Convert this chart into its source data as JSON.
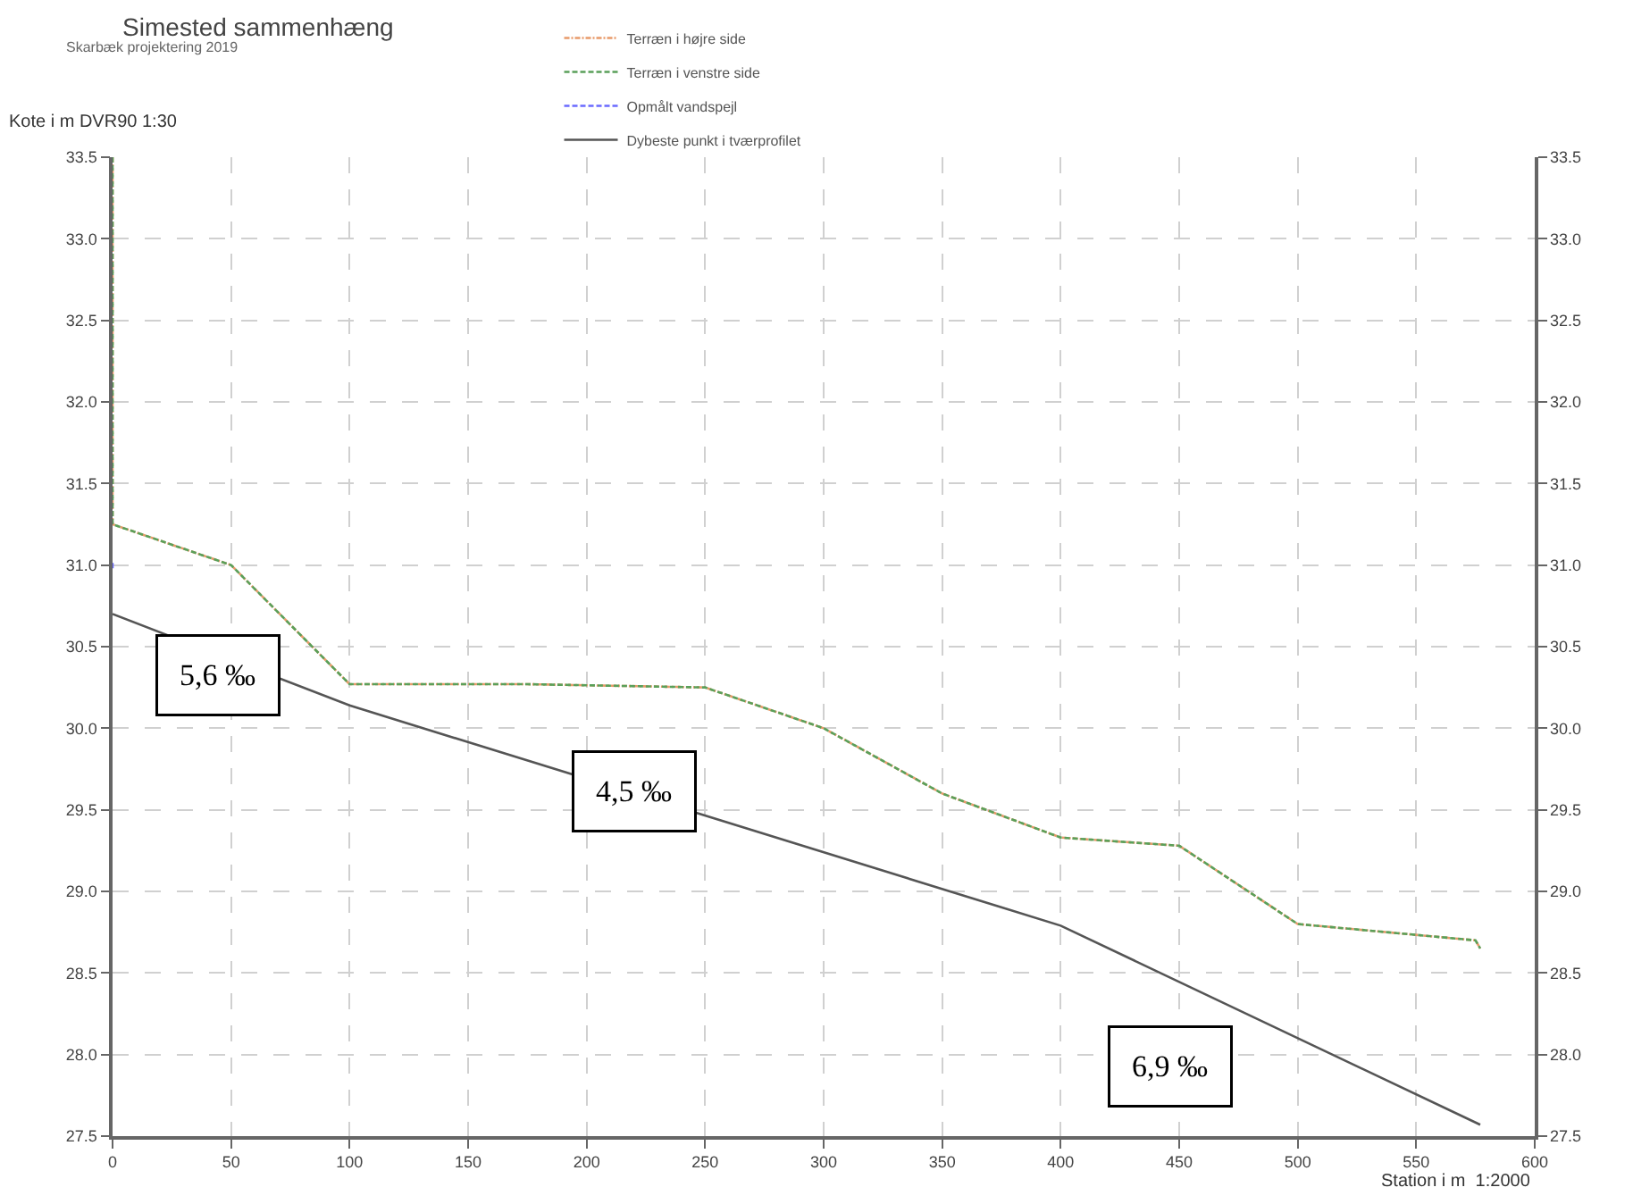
{
  "chart_data": {
    "type": "line",
    "title": "Simested sammenhæng",
    "subtitle": "Skarbæk projektering 2019",
    "xlabel": "Station i m  1:2000",
    "ylabel": "Kote i m DVR90 1:30",
    "series": [
      {
        "name": "Terræn i højre side",
        "color": "#e89a6a",
        "line_style": "dashdot",
        "x": [
          0,
          0,
          50,
          100,
          175,
          250,
          300,
          350,
          400,
          450,
          500,
          575,
          577
        ],
        "values": [
          33.5,
          31.25,
          31.0,
          30.27,
          30.27,
          30.25,
          30.0,
          29.6,
          29.33,
          29.28,
          28.8,
          28.7,
          28.65
        ]
      },
      {
        "name": "Terræn i venstre side",
        "color": "#5aa05a",
        "line_style": "dashed",
        "x": [
          0,
          0,
          50,
          100,
          175,
          250,
          300,
          350,
          400,
          450,
          500,
          575,
          577
        ],
        "values": [
          33.5,
          31.25,
          31.0,
          30.27,
          30.27,
          30.25,
          30.0,
          29.6,
          29.33,
          29.28,
          28.8,
          28.7,
          28.65
        ]
      },
      {
        "name": "Opmålt vandspejl",
        "color": "#6a6aff",
        "line_style": "dashed",
        "x": [
          0,
          0
        ],
        "values": [
          30.98,
          31.02
        ]
      },
      {
        "name": "Dybeste punkt i tværprofilet",
        "color": "#555555",
        "line_style": "solid",
        "x": [
          0,
          100,
          400,
          577
        ],
        "values": [
          30.7,
          30.14,
          28.79,
          27.57
        ]
      }
    ],
    "xlim": [
      0,
      600
    ],
    "xticks": [
      0,
      50,
      100,
      150,
      200,
      250,
      300,
      350,
      400,
      450,
      500,
      550,
      600
    ],
    "ylim": [
      27.5,
      33.5
    ],
    "yticks": [
      {
        "value": 27.5,
        "label": "27.5"
      },
      {
        "value": 28,
        "label": "28.0"
      },
      {
        "value": 28.5,
        "label": "28.5"
      },
      {
        "value": 29,
        "label": "29.0"
      },
      {
        "value": 29.5,
        "label": "29.5"
      },
      {
        "value": 30,
        "label": "30.0"
      },
      {
        "value": 30.5,
        "label": "30.5"
      },
      {
        "value": 31,
        "label": "31.0"
      },
      {
        "value": 31.5,
        "label": "31.5"
      },
      {
        "value": 32,
        "label": "32.0"
      },
      {
        "value": 32.5,
        "label": "32.5"
      },
      {
        "value": 33,
        "label": "33.0"
      },
      {
        "value": 33.5,
        "label": "33.5"
      }
    ],
    "y2lim": [
      27.5,
      33.5
    ],
    "y2ticks": [
      {
        "value": 27.5,
        "label": "27.5"
      },
      {
        "value": 28,
        "label": "28.0"
      },
      {
        "value": 28.5,
        "label": "28.5"
      },
      {
        "value": 29,
        "label": "29.0"
      },
      {
        "value": 29.5,
        "label": "29.5"
      },
      {
        "value": 30,
        "label": "30.0"
      },
      {
        "value": 30.5,
        "label": "30.5"
      },
      {
        "value": 31,
        "label": "31.0"
      },
      {
        "value": 31.5,
        "label": "31.5"
      },
      {
        "value": 32,
        "label": "32.0"
      },
      {
        "value": 32.5,
        "label": "32.5"
      },
      {
        "value": 33,
        "label": "33.0"
      },
      {
        "value": 33.5,
        "label": "33.5"
      }
    ],
    "annotations": [
      "5,6 ‰",
      "4,5 ‰",
      "6,9 ‰"
    ],
    "grid": true,
    "legend": "top",
    "marker": "none"
  }
}
